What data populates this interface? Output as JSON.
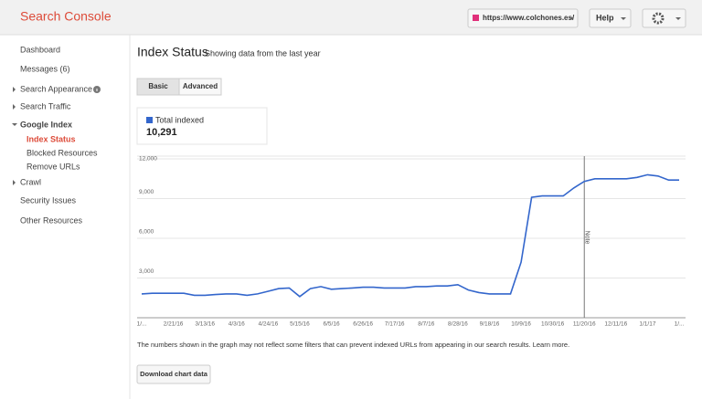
{
  "header": {
    "logo": "Search Console",
    "site": "https://www.colchones.es/",
    "help": "Help"
  },
  "sidebar": {
    "items": [
      "Dashboard",
      "Messages (6)",
      "Search Appearance",
      "Search Traffic",
      "Google Index",
      "Index Status",
      "Blocked Resources",
      "Remove URLs",
      "Crawl",
      "Security Issues",
      "Other Resources"
    ]
  },
  "main": {
    "title": "Index Status",
    "subtitle": "Showing data from the last year",
    "tabs": [
      "Basic",
      "Advanced"
    ],
    "total": "10,291",
    "note": "The numbers shown in the graph may not reflect some filters that can prevent indexed URLs from appearing in our search results. Learn more.",
    "button": "Download chart data"
  },
  "chart_data": {
    "type": "line",
    "categories": [
      "1/...",
      null,
      null,
      "2/21/16",
      null,
      null,
      "3/13/16",
      null,
      null,
      "4/3/16",
      null,
      null,
      "4/24/16",
      null,
      null,
      "5/15/16",
      null,
      null,
      "6/5/16",
      null,
      null,
      "6/26/16",
      null,
      null,
      "7/17/16",
      null,
      null,
      "8/7/16",
      null,
      null,
      "8/28/16",
      null,
      null,
      "9/18/16",
      null,
      null,
      "10/9/16",
      null,
      null,
      "10/30/16",
      null,
      null,
      "11/20/16",
      null,
      null,
      "12/11/16",
      null,
      null,
      "1/1/17",
      null,
      null,
      "1/..."
    ],
    "series": [
      {
        "name": "Total indexed",
        "color": "#3366cc",
        "values": [
          1800,
          1850,
          1850,
          1850,
          1850,
          1700,
          1700,
          1750,
          1800,
          1800,
          1700,
          1800,
          2000,
          2200,
          2250,
          1600,
          2200,
          2350,
          2150,
          2200,
          2250,
          2300,
          2300,
          2250,
          2250,
          2250,
          2350,
          2350,
          2400,
          2400,
          2500,
          2100,
          1900,
          1800,
          1800,
          1800,
          4200,
          9100,
          9200,
          9200,
          9200,
          9800,
          10300,
          10500,
          10500,
          10500,
          10500,
          10600,
          10800,
          10700,
          10400,
          10400
        ]
      }
    ],
    "ylim": [
      0,
      12000
    ],
    "yticks": [
      {
        "value": 3000,
        "label": "3,000"
      },
      {
        "value": 6000,
        "label": "6,000"
      },
      {
        "value": 9000,
        "label": "9,000"
      },
      {
        "value": 12000,
        "label": "12,000"
      }
    ],
    "grid": true,
    "annotations": [
      {
        "text": "Note",
        "x": "11/20/16"
      }
    ]
  }
}
